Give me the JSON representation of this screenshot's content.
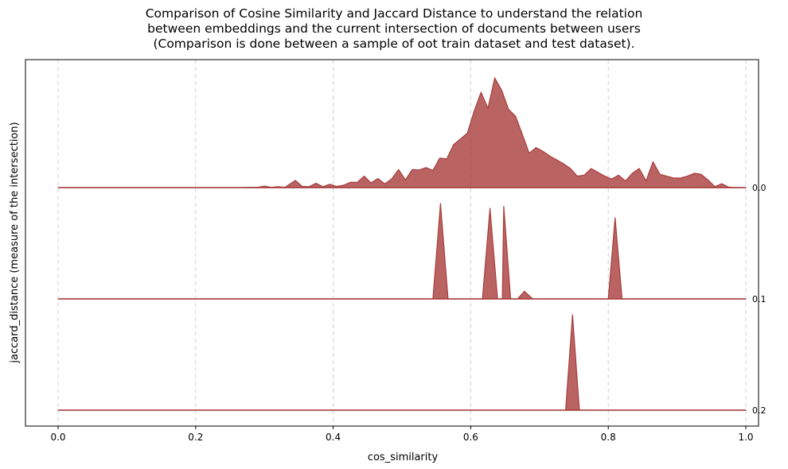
{
  "chart_data": {
    "type": "area",
    "title": "Comparison of Cosine Similarity and Jaccard Distance to understand the relation\n between embeddings and the current intersection of documents between users\n(Comparison is done between a sample of oot train dataset and test dataset).",
    "xlabel": "cos_similarity",
    "ylabel": "jaccard_distance (measure of the intersection)",
    "xlim": [
      0.0,
      1.0
    ],
    "x_ticks": [
      "0.0",
      "0.2",
      "0.4",
      "0.6",
      "0.8",
      "1.0"
    ],
    "x_tick_values": [
      0.0,
      0.2,
      0.4,
      0.6,
      0.8,
      1.0
    ],
    "grid": "vertical dashed",
    "fill_color": "#a83c3c",
    "series": [
      {
        "name": "0.0",
        "points": [
          [
            0.0,
            0
          ],
          [
            0.26,
            0
          ],
          [
            0.28,
            0.003
          ],
          [
            0.29,
            0.003
          ],
          [
            0.3,
            0.015
          ],
          [
            0.31,
            0.003
          ],
          [
            0.32,
            0.01
          ],
          [
            0.33,
            0.003
          ],
          [
            0.345,
            0.075
          ],
          [
            0.355,
            0.012
          ],
          [
            0.365,
            0.01
          ],
          [
            0.375,
            0.045
          ],
          [
            0.385,
            0.01
          ],
          [
            0.395,
            0.035
          ],
          [
            0.405,
            0.012
          ],
          [
            0.415,
            0.025
          ],
          [
            0.425,
            0.055
          ],
          [
            0.435,
            0.055
          ],
          [
            0.445,
            0.12
          ],
          [
            0.455,
            0.05
          ],
          [
            0.465,
            0.095
          ],
          [
            0.475,
            0.04
          ],
          [
            0.485,
            0.09
          ],
          [
            0.495,
            0.19
          ],
          [
            0.505,
            0.08
          ],
          [
            0.515,
            0.19
          ],
          [
            0.525,
            0.185
          ],
          [
            0.535,
            0.21
          ],
          [
            0.545,
            0.18
          ],
          [
            0.555,
            0.31
          ],
          [
            0.565,
            0.3
          ],
          [
            0.575,
            0.45
          ],
          [
            0.585,
            0.51
          ],
          [
            0.595,
            0.57
          ],
          [
            0.605,
            0.8
          ],
          [
            0.615,
            1.0
          ],
          [
            0.625,
            0.83
          ],
          [
            0.635,
            1.15
          ],
          [
            0.645,
            1.02
          ],
          [
            0.655,
            0.82
          ],
          [
            0.665,
            0.75
          ],
          [
            0.675,
            0.56
          ],
          [
            0.685,
            0.36
          ],
          [
            0.695,
            0.42
          ],
          [
            0.705,
            0.38
          ],
          [
            0.715,
            0.33
          ],
          [
            0.725,
            0.29
          ],
          [
            0.735,
            0.25
          ],
          [
            0.745,
            0.2
          ],
          [
            0.755,
            0.12
          ],
          [
            0.765,
            0.13
          ],
          [
            0.775,
            0.2
          ],
          [
            0.785,
            0.16
          ],
          [
            0.795,
            0.12
          ],
          [
            0.805,
            0.09
          ],
          [
            0.815,
            0.13
          ],
          [
            0.825,
            0.07
          ],
          [
            0.835,
            0.15
          ],
          [
            0.845,
            0.2
          ],
          [
            0.855,
            0.07
          ],
          [
            0.865,
            0.27
          ],
          [
            0.875,
            0.14
          ],
          [
            0.885,
            0.12
          ],
          [
            0.895,
            0.1
          ],
          [
            0.905,
            0.1
          ],
          [
            0.915,
            0.12
          ],
          [
            0.925,
            0.15
          ],
          [
            0.935,
            0.14
          ],
          [
            0.945,
            0.08
          ],
          [
            0.955,
            0.01
          ],
          [
            0.965,
            0.04
          ],
          [
            0.975,
            0.005
          ],
          [
            0.985,
            0
          ],
          [
            1.0,
            0
          ]
        ]
      },
      {
        "name": "0.1",
        "points": [
          [
            0.0,
            0
          ],
          [
            0.545,
            0
          ],
          [
            0.556,
            1.0
          ],
          [
            0.567,
            0
          ],
          [
            0.617,
            0
          ],
          [
            0.628,
            0.95
          ],
          [
            0.639,
            0
          ],
          [
            0.646,
            0
          ],
          [
            0.648,
            0.97
          ],
          [
            0.658,
            0
          ],
          [
            0.668,
            0
          ],
          [
            0.678,
            0.08
          ],
          [
            0.69,
            0
          ],
          [
            0.8,
            0
          ],
          [
            0.81,
            0.85
          ],
          [
            0.82,
            0
          ],
          [
            1.0,
            0
          ]
        ]
      },
      {
        "name": "0.2",
        "points": [
          [
            0.0,
            0
          ],
          [
            0.738,
            0
          ],
          [
            0.748,
            1.0
          ],
          [
            0.758,
            0
          ],
          [
            1.0,
            0
          ]
        ]
      }
    ]
  }
}
